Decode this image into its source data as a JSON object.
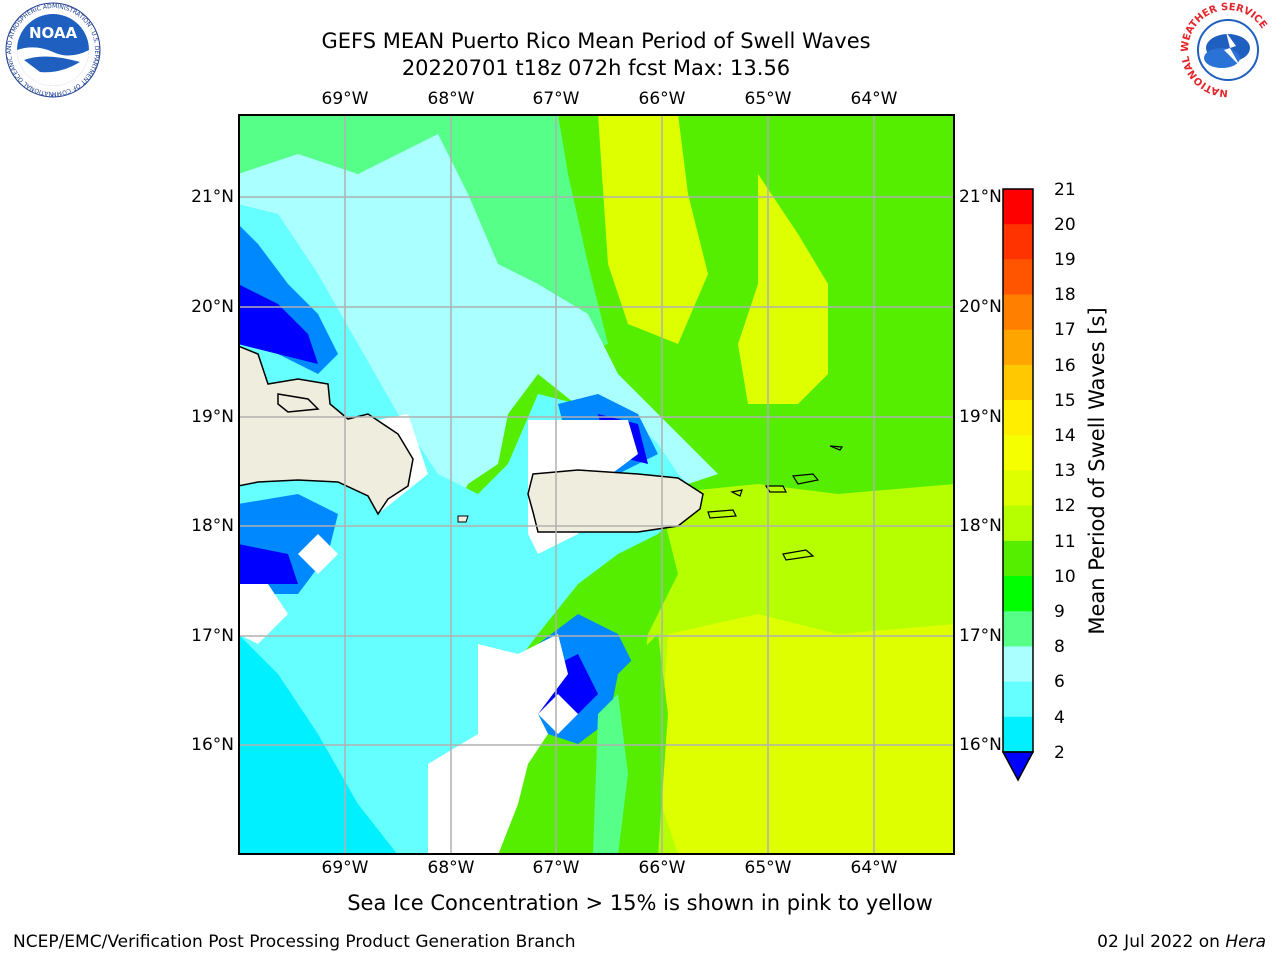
{
  "header": {
    "title_line1": "GEFS MEAN Puerto Rico Mean Period of Swell Waves",
    "title_line2": "20220701 t18z 072h fcst   Max: 13.56"
  },
  "logos": {
    "noaa": {
      "text": "NOAA",
      "ring_text": "NATIONAL OCEANIC AND ATMOSPHERIC ADMINISTRATION · U.S. DEPARTMENT OF COMMERCE"
    },
    "nws": {
      "ring_text": "NATIONAL WEATHER SERVICE"
    }
  },
  "map": {
    "lon_labels": [
      "69°W",
      "68°W",
      "67°W",
      "66°W",
      "65°W",
      "64°W"
    ],
    "lat_labels": [
      "21°N",
      "20°N",
      "19°N",
      "18°N",
      "17°N",
      "16°N"
    ]
  },
  "colorbar": {
    "label": "Mean Period of Swell Waves [s]",
    "ticks": [
      "21",
      "20",
      "19",
      "18",
      "17",
      "16",
      "15",
      "14",
      "13",
      "12",
      "11",
      "10",
      "9",
      "8",
      "6",
      "4",
      "2"
    ],
    "colors": [
      "#ff0000",
      "#ff3300",
      "#ff5500",
      "#ff7f00",
      "#ffa500",
      "#ffc800",
      "#ffee00",
      "#f5ff00",
      "#ddff00",
      "#b5ff00",
      "#55ee00",
      "#00ff00",
      "#55ff88",
      "#aaffff",
      "#66ffff",
      "#00f0ff",
      "#0088ff"
    ],
    "extend_color": "#0000ff"
  },
  "note": "Sea Ice Concentration > 15% is shown in pink to yellow",
  "footer": {
    "left": "NCEP/EMC/Verification Post Processing Product Generation Branch",
    "right_prefix": "02 Jul 2022 on ",
    "right_host": "Hera"
  },
  "colors": {
    "land": "#eeedde",
    "no_data": "#ffffff",
    "grid": "#b0b0b0"
  }
}
